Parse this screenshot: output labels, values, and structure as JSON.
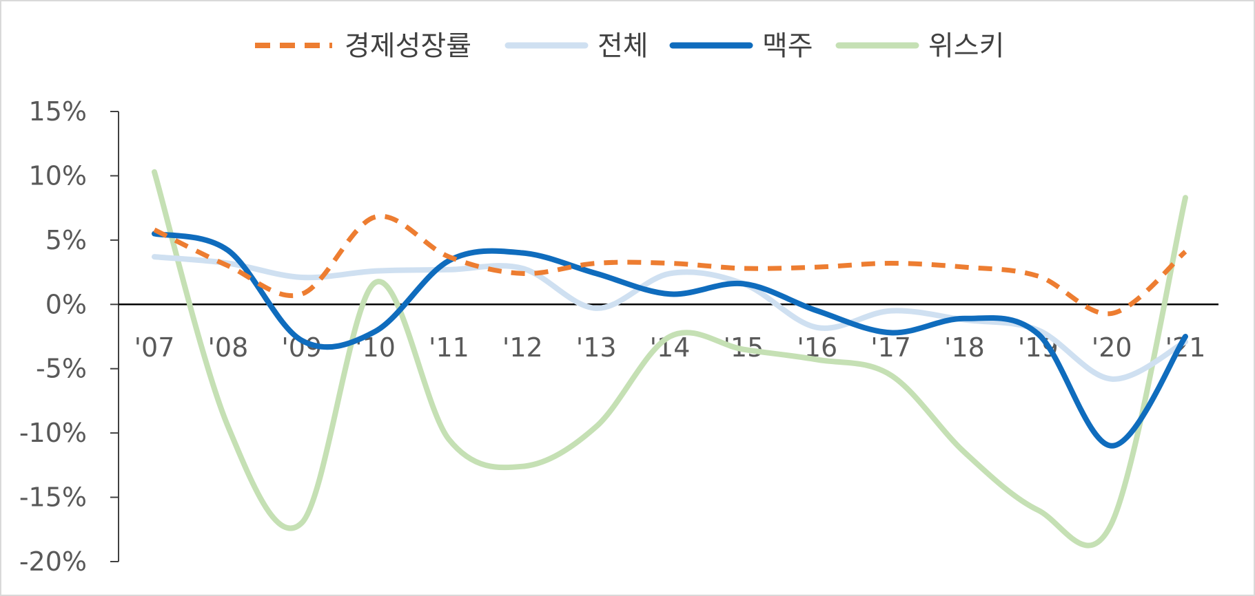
{
  "chart_data": {
    "type": "line",
    "smooth": true,
    "categories": [
      "'07",
      "'08",
      "'09",
      "'10",
      "'11",
      "'12",
      "'13",
      "'14",
      "'15",
      "'16",
      "'17",
      "'18",
      "'19",
      "'20",
      "'21"
    ],
    "ylim": [
      -20,
      15
    ],
    "yticks": [
      15,
      10,
      5,
      0,
      -5,
      -10,
      -15,
      -20
    ],
    "ytick_labels": [
      "15%",
      "10%",
      "5%",
      "0%",
      "-5%",
      "-10%",
      "-15%",
      "-20%"
    ],
    "legend_position": "top",
    "series": [
      {
        "name": "경제성장률",
        "color": "#ed7d31",
        "dash": true,
        "values": [
          5.8,
          3.0,
          0.8,
          6.8,
          3.7,
          2.4,
          3.2,
          3.2,
          2.8,
          2.9,
          3.2,
          2.9,
          2.2,
          -0.7,
          4.1
        ]
      },
      {
        "name": "전체",
        "color": "#cfe0f1",
        "dash": false,
        "values": [
          3.7,
          3.2,
          2.1,
          2.6,
          2.7,
          2.8,
          -0.3,
          2.4,
          1.6,
          -1.8,
          -0.5,
          -1.2,
          -2.0,
          -5.8,
          -2.9
        ]
      },
      {
        "name": "맥주",
        "color": "#0f6cbd",
        "dash": false,
        "values": [
          5.5,
          4.2,
          -2.8,
          -2.1,
          3.4,
          4.0,
          2.4,
          0.8,
          1.6,
          -0.5,
          -2.2,
          -1.1,
          -2.3,
          -11.0,
          -2.5
        ]
      },
      {
        "name": "위스키",
        "color": "#c5e0b4",
        "dash": false,
        "values": [
          10.3,
          -9.5,
          -17.0,
          1.7,
          -10.5,
          -12.6,
          -9.5,
          -2.5,
          -3.5,
          -4.3,
          -5.5,
          -11.5,
          -16.0,
          -17.0,
          8.3
        ]
      }
    ]
  }
}
